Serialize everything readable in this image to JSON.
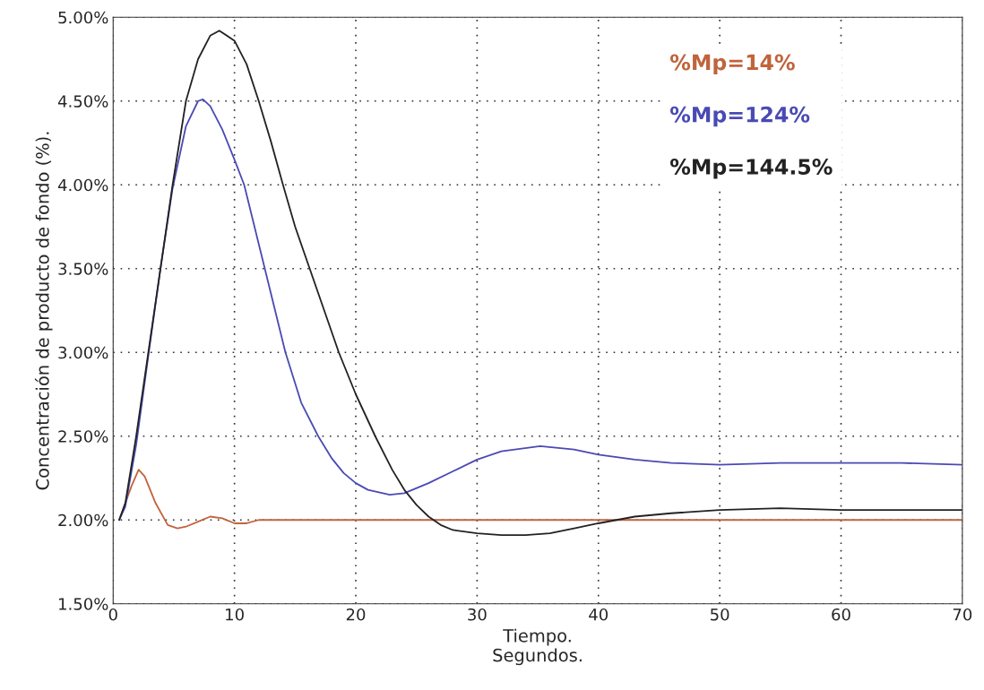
{
  "chart_data": {
    "type": "line",
    "xlabel": "Tiempo.\nSegundos.",
    "ylabel": "Concentración de producto de fondo (%).",
    "xlim": [
      0,
      70
    ],
    "xticks": [
      0,
      10,
      20,
      30,
      40,
      50,
      60,
      70
    ],
    "ylim": [
      1.5,
      5.0
    ],
    "yticks": [
      {
        "value": 1.5,
        "label": "1.50%"
      },
      {
        "value": 2.0,
        "label": "2.00%"
      },
      {
        "value": 2.5,
        "label": "2.50%"
      },
      {
        "value": 3.0,
        "label": "3.00%"
      },
      {
        "value": 3.5,
        "label": "3.50%"
      },
      {
        "value": 4.0,
        "label": "4.00%"
      },
      {
        "value": 4.5,
        "label": "4.50%"
      },
      {
        "value": 5.0,
        "label": "5.00%"
      }
    ],
    "grid": true,
    "legend": "top right",
    "marker": "none",
    "line_style": "solid",
    "series": [
      {
        "name": "%Mp=14%",
        "color": "#c0643c",
        "x": [
          0.5,
          1.5,
          2.1,
          2.6,
          3.5,
          4.5,
          5.3,
          6,
          7,
          8,
          9,
          10,
          11,
          12,
          15,
          20,
          30,
          40,
          50,
          60,
          70
        ],
        "values": [
          2.0,
          2.2,
          2.3,
          2.26,
          2.1,
          1.97,
          1.95,
          1.96,
          1.99,
          2.02,
          2.01,
          1.98,
          1.98,
          2.0,
          2.0,
          2.0,
          2.0,
          2.0,
          2.0,
          2.0,
          2.0
        ]
      },
      {
        "name": "%Mp=124%",
        "color": "#4a4ab4",
        "x": [
          0.5,
          1,
          1.9,
          2.9,
          3.9,
          4.9,
          6,
          7,
          7.4,
          8,
          9,
          10,
          10.8,
          12.5,
          14.2,
          15.5,
          16.9,
          18,
          19,
          20,
          21,
          22.8,
          24,
          26,
          28,
          30,
          32,
          35.2,
          38,
          40,
          43,
          46,
          50,
          55,
          60,
          65,
          70
        ],
        "values": [
          2.0,
          2.08,
          2.45,
          2.98,
          3.5,
          3.98,
          4.35,
          4.5,
          4.51,
          4.47,
          4.33,
          4.15,
          4.0,
          3.5,
          3.0,
          2.7,
          2.5,
          2.37,
          2.28,
          2.22,
          2.18,
          2.15,
          2.16,
          2.22,
          2.29,
          2.36,
          2.41,
          2.44,
          2.42,
          2.39,
          2.36,
          2.34,
          2.33,
          2.34,
          2.34,
          2.34,
          2.33
        ]
      },
      {
        "name": "%Mp=144.5%",
        "color": "#222222",
        "x": [
          0.5,
          1,
          1.9,
          2.9,
          3.9,
          4.9,
          6,
          7,
          8,
          8.75,
          10,
          11,
          12,
          13,
          14,
          15,
          16.2,
          17.4,
          18.6,
          20,
          21.6,
          23,
          24,
          25,
          26,
          27,
          28,
          30,
          32,
          34,
          36,
          38,
          40,
          43,
          46,
          50,
          55,
          60,
          65,
          70
        ],
        "values": [
          2.0,
          2.1,
          2.5,
          3.0,
          3.5,
          4.0,
          4.5,
          4.75,
          4.89,
          4.92,
          4.86,
          4.72,
          4.5,
          4.26,
          4.0,
          3.75,
          3.5,
          3.25,
          3.0,
          2.75,
          2.5,
          2.3,
          2.18,
          2.09,
          2.02,
          1.97,
          1.94,
          1.92,
          1.91,
          1.91,
          1.92,
          1.95,
          1.98,
          2.02,
          2.04,
          2.06,
          2.07,
          2.06,
          2.06,
          2.06
        ]
      }
    ]
  }
}
